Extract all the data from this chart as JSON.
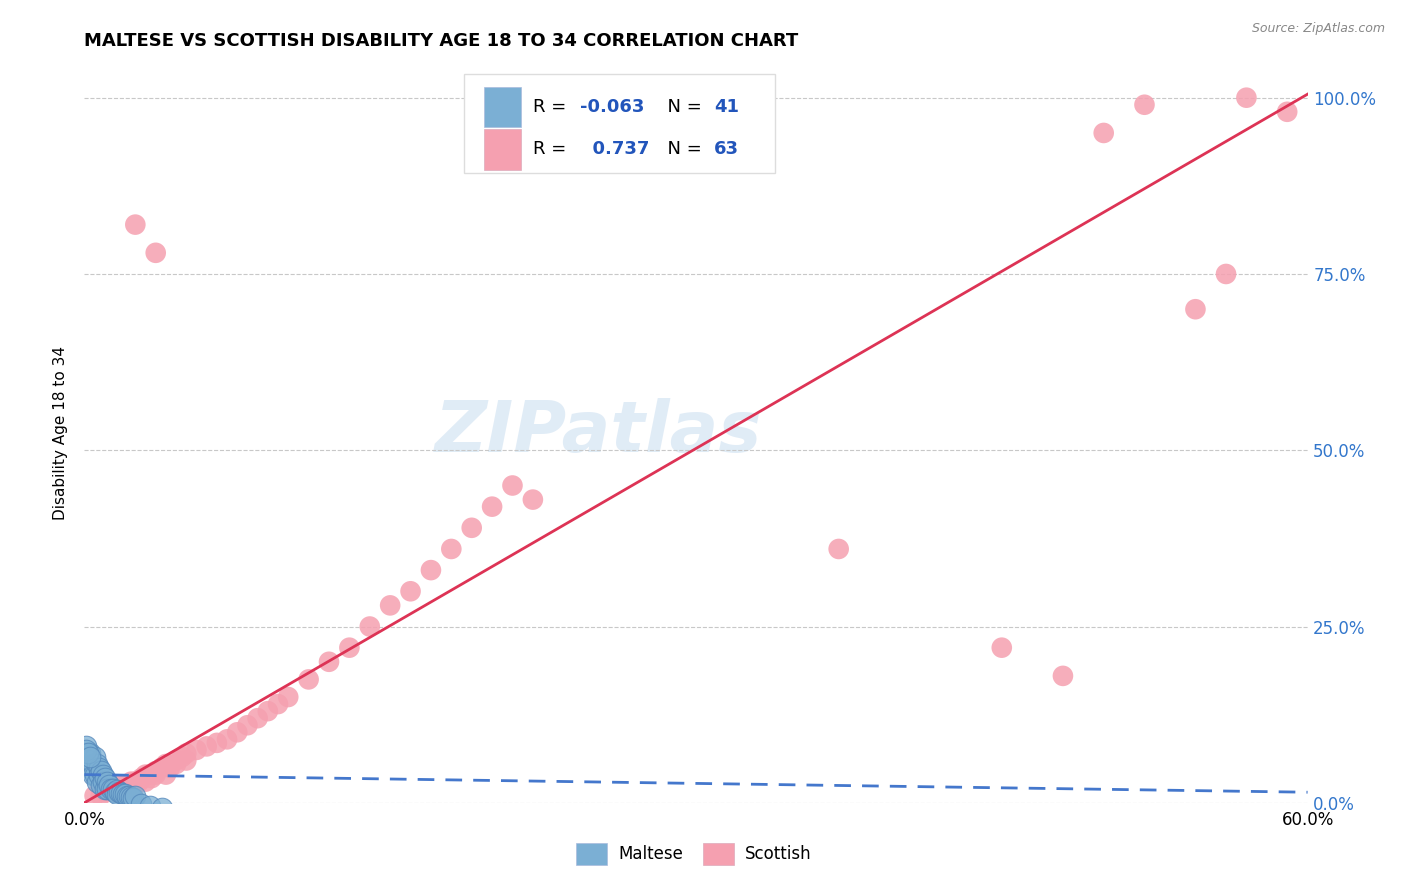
{
  "title": "MALTESE VS SCOTTISH DISABILITY AGE 18 TO 34 CORRELATION CHART",
  "source_text": "Source: ZipAtlas.com",
  "ylabel": "Disability Age 18 to 34",
  "xlim": [
    0.0,
    0.6
  ],
  "ylim": [
    0.0,
    1.05
  ],
  "ytick_labels": [
    "0.0%",
    "25.0%",
    "50.0%",
    "75.0%",
    "100.0%"
  ],
  "ytick_positions": [
    0.0,
    0.25,
    0.5,
    0.75,
    1.0
  ],
  "grid_color": "#c8c8c8",
  "maltese_color": "#7bafd4",
  "maltese_edge_color": "#5588bb",
  "scottish_color": "#f5a0b0",
  "scottish_edge_color": "#e07080",
  "maltese_line_color": "#4477cc",
  "scottish_line_color": "#dd3355",
  "legend_R_maltese": "-0.063",
  "legend_N_maltese": "41",
  "legend_R_scottish": "0.737",
  "legend_N_scottish": "63",
  "ytick_color": "#3377cc",
  "watermark": "ZIPatlas",
  "maltese_points": [
    [
      0.002,
      0.06
    ],
    [
      0.003,
      0.07
    ],
    [
      0.003,
      0.05
    ],
    [
      0.004,
      0.055
    ],
    [
      0.004,
      0.04
    ],
    [
      0.005,
      0.065
    ],
    [
      0.005,
      0.04
    ],
    [
      0.006,
      0.055
    ],
    [
      0.006,
      0.03
    ],
    [
      0.007,
      0.05
    ],
    [
      0.007,
      0.04
    ],
    [
      0.008,
      0.045
    ],
    [
      0.008,
      0.025
    ],
    [
      0.009,
      0.04
    ],
    [
      0.009,
      0.03
    ],
    [
      0.01,
      0.035
    ],
    [
      0.01,
      0.02
    ],
    [
      0.011,
      0.03
    ],
    [
      0.011,
      0.02
    ],
    [
      0.012,
      0.025
    ],
    [
      0.013,
      0.02
    ],
    [
      0.014,
      0.02
    ],
    [
      0.015,
      0.015
    ],
    [
      0.016,
      0.018
    ],
    [
      0.016,
      0.012
    ],
    [
      0.017,
      0.015
    ],
    [
      0.018,
      0.014
    ],
    [
      0.019,
      0.012
    ],
    [
      0.02,
      0.012
    ],
    [
      0.021,
      0.01
    ],
    [
      0.022,
      0.01
    ],
    [
      0.023,
      0.008
    ],
    [
      0.024,
      0.007
    ],
    [
      0.025,
      0.01
    ],
    [
      0.001,
      0.08
    ],
    [
      0.001,
      0.075
    ],
    [
      0.002,
      0.07
    ],
    [
      0.003,
      0.065
    ],
    [
      0.028,
      -0.002
    ],
    [
      0.032,
      -0.005
    ],
    [
      0.038,
      -0.008
    ]
  ],
  "scottish_points": [
    [
      0.005,
      0.01
    ],
    [
      0.008,
      0.01
    ],
    [
      0.01,
      0.015
    ],
    [
      0.012,
      0.02
    ],
    [
      0.015,
      0.02
    ],
    [
      0.015,
      0.015
    ],
    [
      0.017,
      0.025
    ],
    [
      0.018,
      0.02
    ],
    [
      0.02,
      0.025
    ],
    [
      0.022,
      0.02
    ],
    [
      0.023,
      0.03
    ],
    [
      0.025,
      0.03
    ],
    [
      0.025,
      0.025
    ],
    [
      0.027,
      0.03
    ],
    [
      0.028,
      0.035
    ],
    [
      0.03,
      0.04
    ],
    [
      0.03,
      0.03
    ],
    [
      0.032,
      0.04
    ],
    [
      0.033,
      0.035
    ],
    [
      0.035,
      0.045
    ],
    [
      0.035,
      0.04
    ],
    [
      0.038,
      0.05
    ],
    [
      0.04,
      0.055
    ],
    [
      0.04,
      0.04
    ],
    [
      0.042,
      0.05
    ],
    [
      0.045,
      0.06
    ],
    [
      0.045,
      0.055
    ],
    [
      0.048,
      0.065
    ],
    [
      0.05,
      0.07
    ],
    [
      0.05,
      0.06
    ],
    [
      0.055,
      0.075
    ],
    [
      0.06,
      0.08
    ],
    [
      0.065,
      0.085
    ],
    [
      0.07,
      0.09
    ],
    [
      0.075,
      0.1
    ],
    [
      0.08,
      0.11
    ],
    [
      0.085,
      0.12
    ],
    [
      0.09,
      0.13
    ],
    [
      0.095,
      0.14
    ],
    [
      0.1,
      0.15
    ],
    [
      0.11,
      0.175
    ],
    [
      0.12,
      0.2
    ],
    [
      0.13,
      0.22
    ],
    [
      0.14,
      0.25
    ],
    [
      0.15,
      0.28
    ],
    [
      0.16,
      0.3
    ],
    [
      0.17,
      0.33
    ],
    [
      0.18,
      0.36
    ],
    [
      0.19,
      0.39
    ],
    [
      0.2,
      0.42
    ],
    [
      0.21,
      0.45
    ],
    [
      0.22,
      0.43
    ],
    [
      0.025,
      0.82
    ],
    [
      0.035,
      0.78
    ],
    [
      0.37,
      0.36
    ],
    [
      0.45,
      0.22
    ],
    [
      0.48,
      0.18
    ],
    [
      0.5,
      0.95
    ],
    [
      0.52,
      0.99
    ],
    [
      0.545,
      0.7
    ],
    [
      0.56,
      0.75
    ],
    [
      0.57,
      1.0
    ],
    [
      0.59,
      0.98
    ]
  ],
  "scottish_line_x": [
    0.0,
    0.6
  ],
  "scottish_line_y": [
    0.0,
    1.005
  ],
  "maltese_line_x": [
    0.0,
    0.6
  ],
  "maltese_line_y": [
    0.04,
    0.015
  ]
}
